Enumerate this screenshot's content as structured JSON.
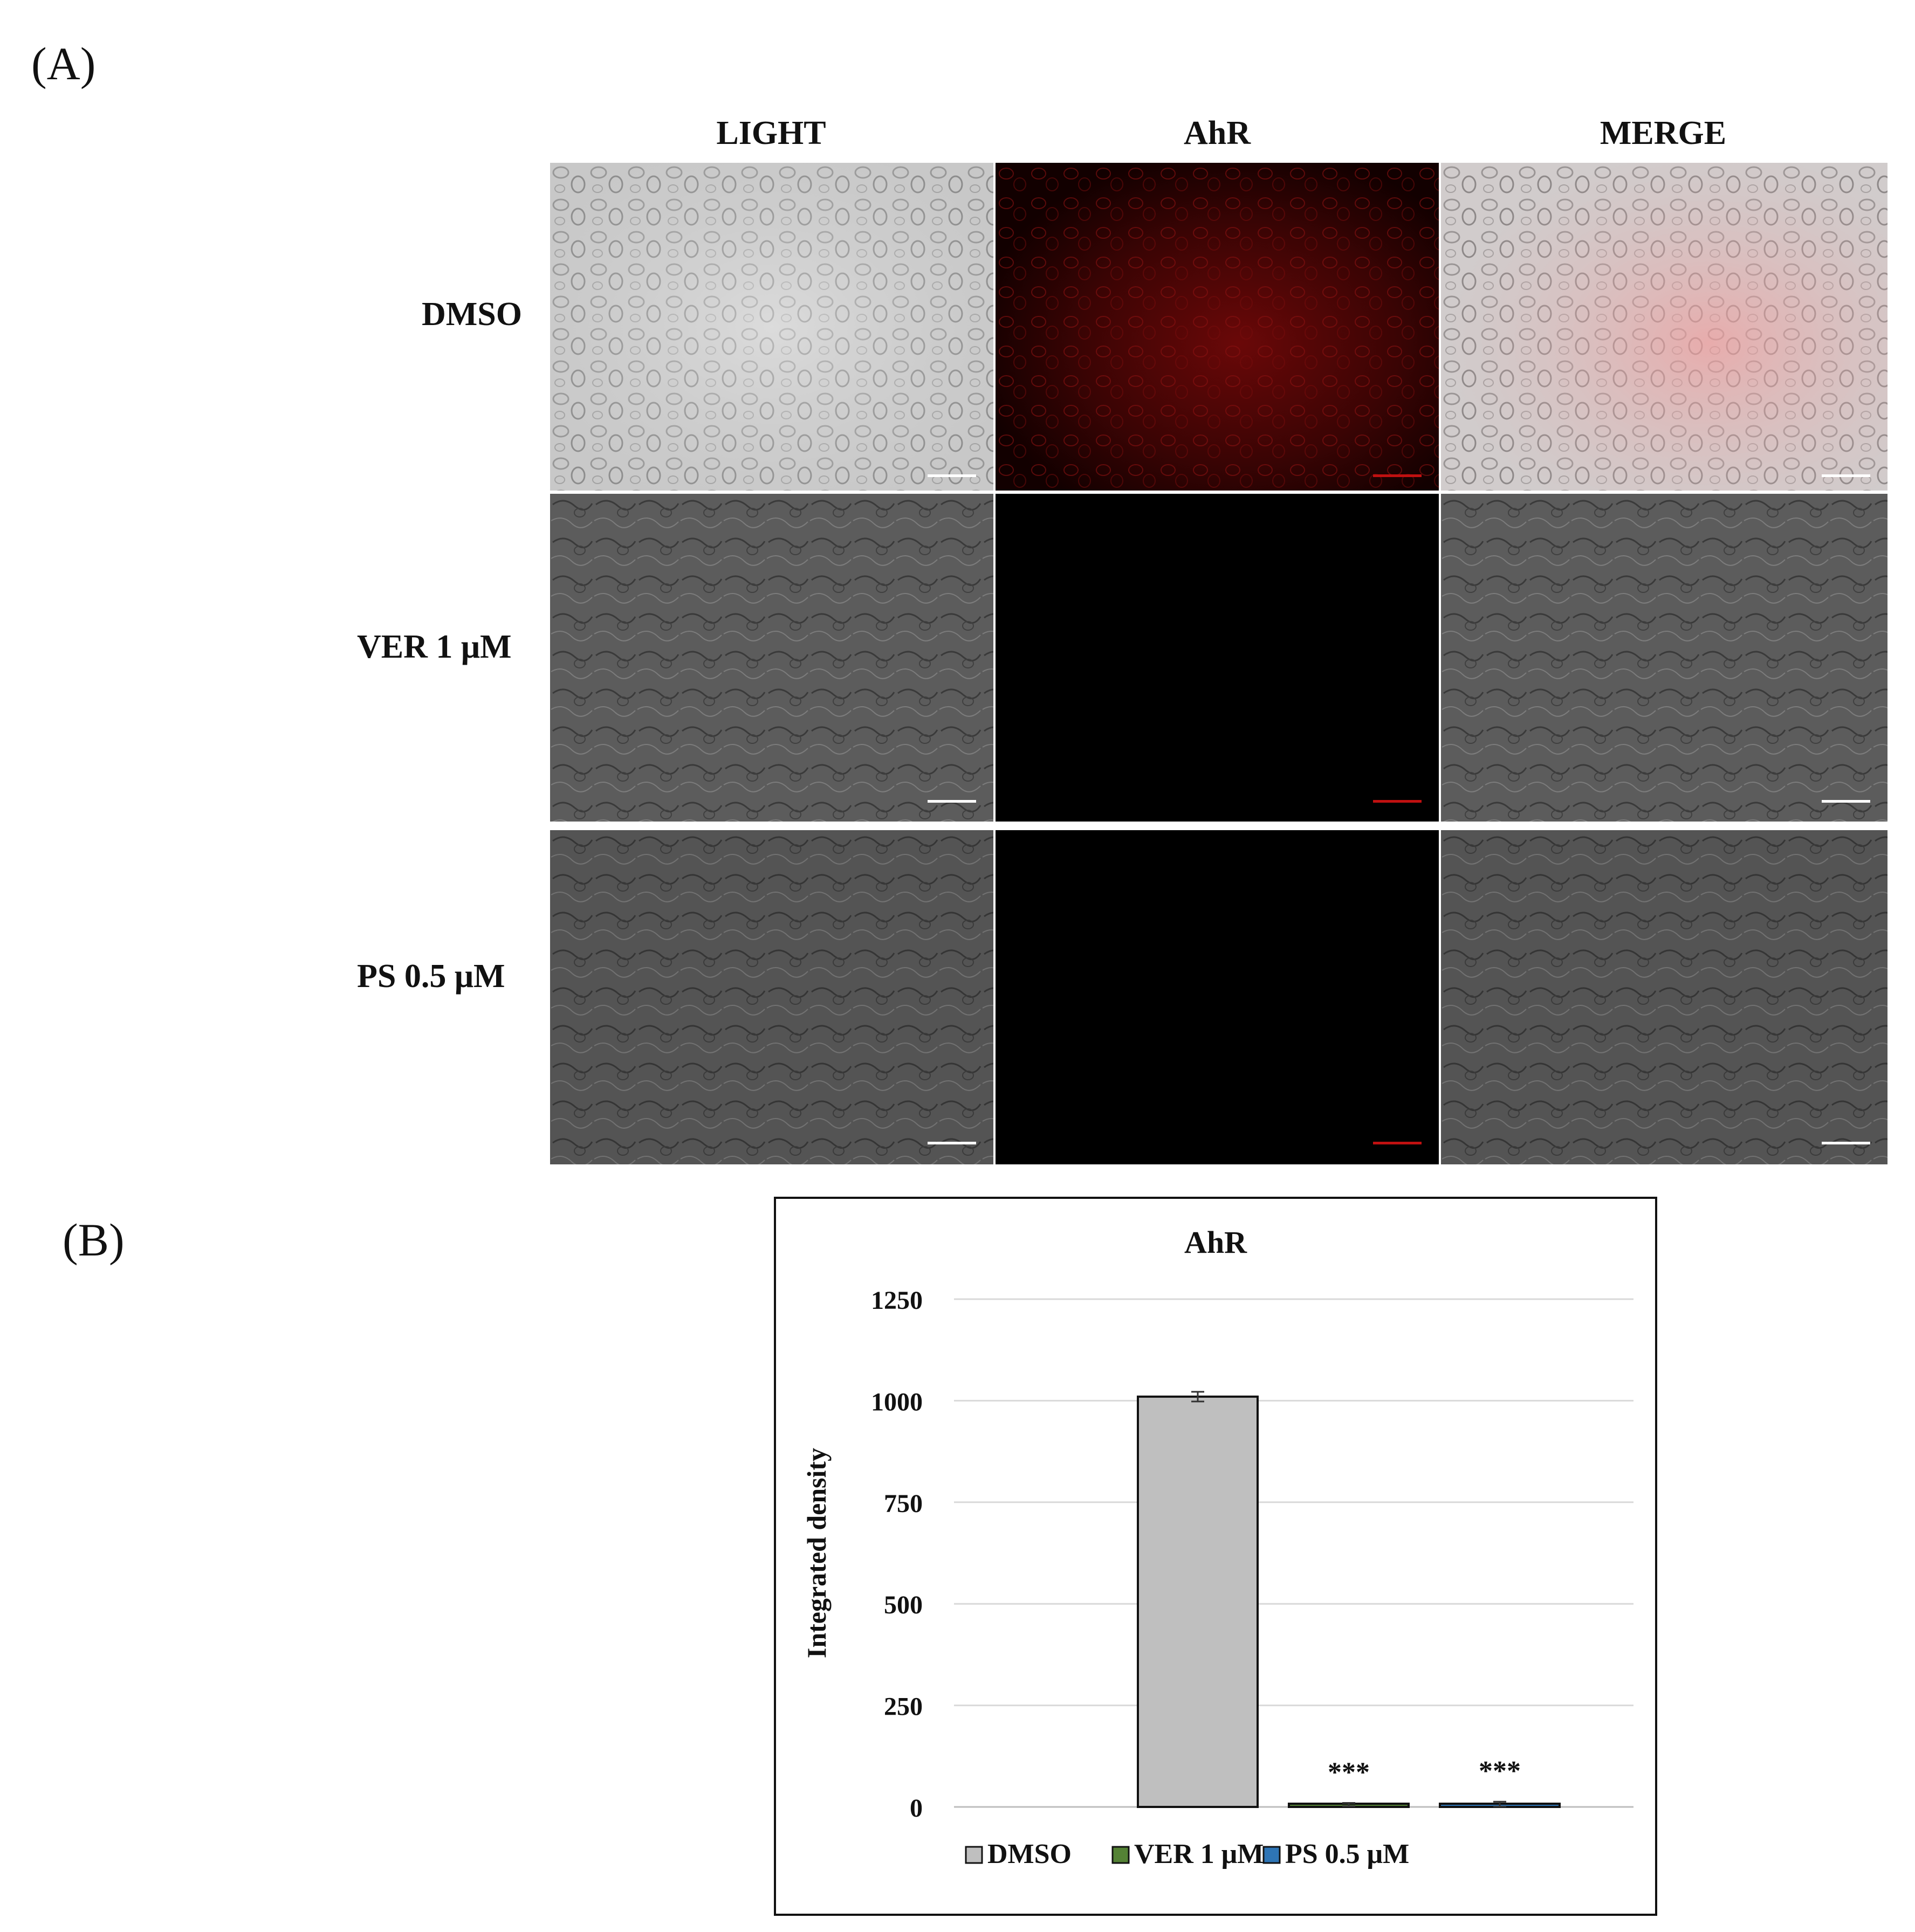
{
  "figure": {
    "panel_a_label": "(A)",
    "panel_b_label": "(B)"
  },
  "microscopy": {
    "columns": [
      "LIGHT",
      "AhR",
      "MERGE"
    ],
    "rows": [
      "DMSO",
      "VER 1 μM",
      "PS 0.5 μM"
    ],
    "colors": {
      "light_bright": "#c9c9c9",
      "light_dark": "#5a5a5a",
      "ahr_signal": "#7a0a0a",
      "merge_tint": "#e8a0a0",
      "black": "#000000"
    }
  },
  "chart_data": {
    "type": "bar",
    "title": "AhR",
    "ylabel": "Integrated density",
    "xlabel": "",
    "categories": [
      "DMSO",
      "VER 1 μM",
      "PS 0.5 μM"
    ],
    "values": [
      1010,
      6,
      7
    ],
    "errors": [
      12,
      4,
      6
    ],
    "annotations": [
      "",
      "***",
      "***"
    ],
    "ylim": [
      0,
      1250
    ],
    "yticks": [
      0,
      250,
      500,
      750,
      1000,
      1250
    ],
    "grid": true,
    "legend": {
      "position": "bottom",
      "entries": [
        "DMSO",
        "VER 1 μM",
        "PS 0.5 μM"
      ],
      "colors": [
        "#bfbfbf",
        "#548235",
        "#2e75b6"
      ]
    },
    "bar_colors": [
      "#bfbfbf",
      "#548235",
      "#2e75b6"
    ]
  }
}
